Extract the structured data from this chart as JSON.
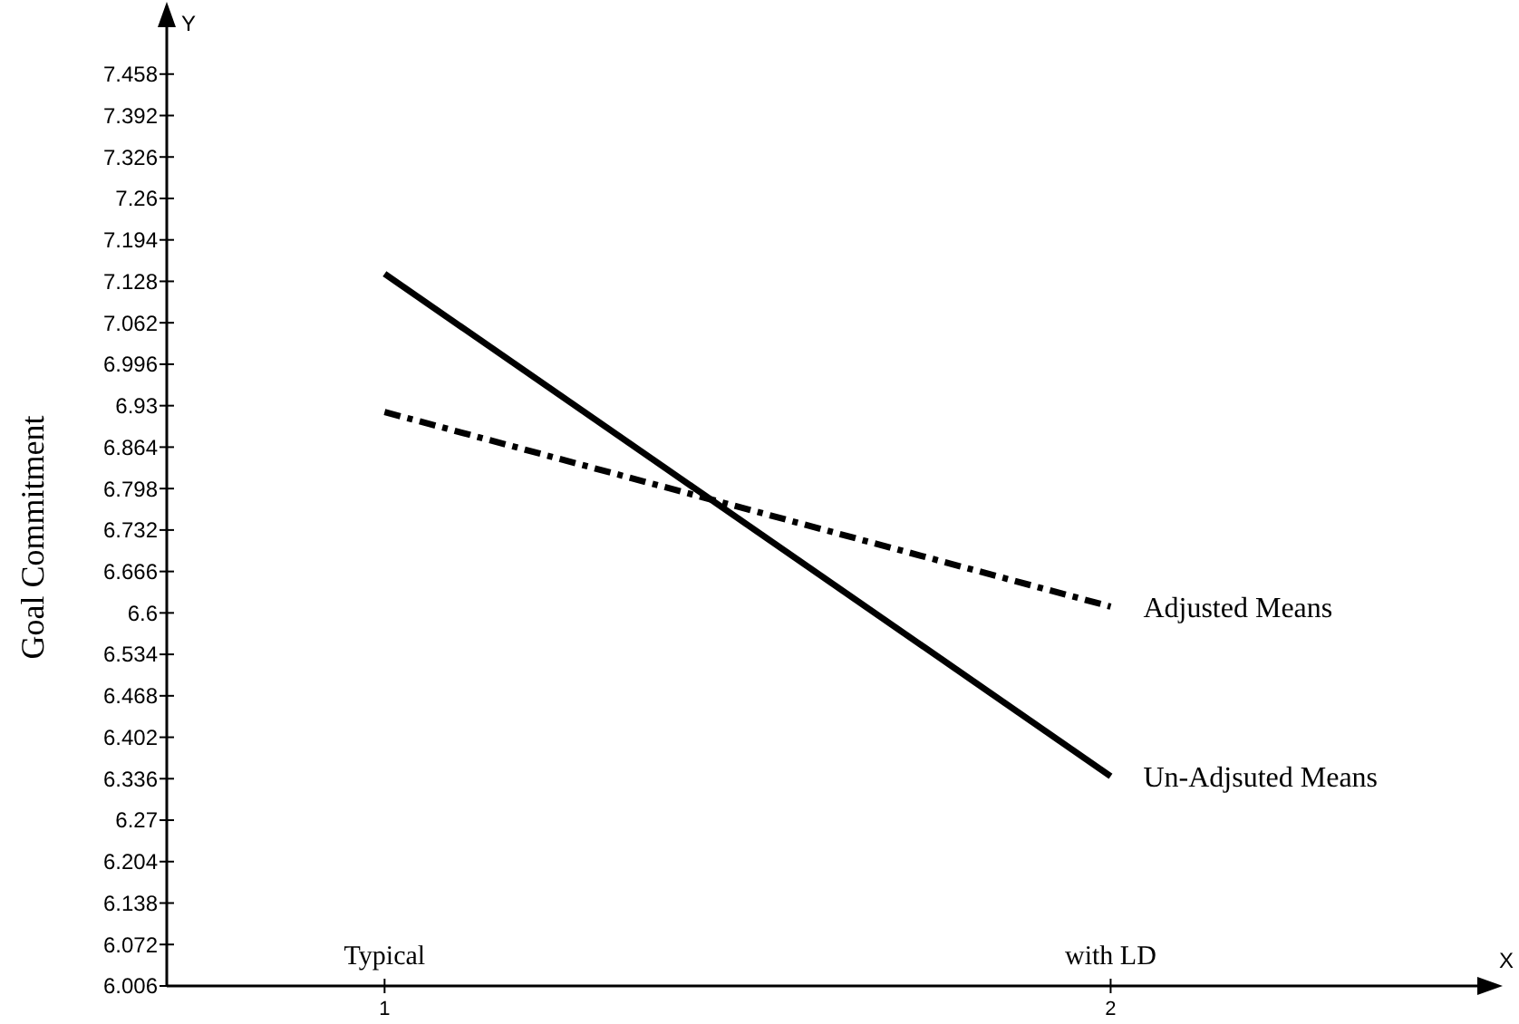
{
  "chart_data": {
    "type": "line",
    "ylabel": "Goal Commitment",
    "xlabel": "X",
    "x": [
      1,
      2
    ],
    "series": [
      {
        "name": "Adjusted Means",
        "color": "#000000",
        "values": [
          6.92,
          6.61
        ],
        "line_style": "dashed"
      },
      {
        "name": "Un-Adjsuted Means",
        "color": "#000000",
        "values": [
          7.14,
          6.34
        ],
        "line_style": "solid"
      }
    ],
    "xlim": [
      0.7,
      2.52
    ],
    "xticks": [
      1,
      2
    ],
    "ylim": [
      6.006,
      7.55
    ],
    "yticks": [
      6.006,
      6.072,
      6.138,
      6.204,
      6.27,
      6.336,
      6.402,
      6.468,
      6.534,
      6.6,
      6.666,
      6.732,
      6.798,
      6.864,
      6.93,
      6.996,
      7.062,
      7.128,
      7.194,
      7.26,
      7.326,
      7.392,
      7.458
    ],
    "annotations": [
      "Y",
      "Typical",
      "with LD"
    ],
    "grid": false,
    "marker": "none"
  }
}
